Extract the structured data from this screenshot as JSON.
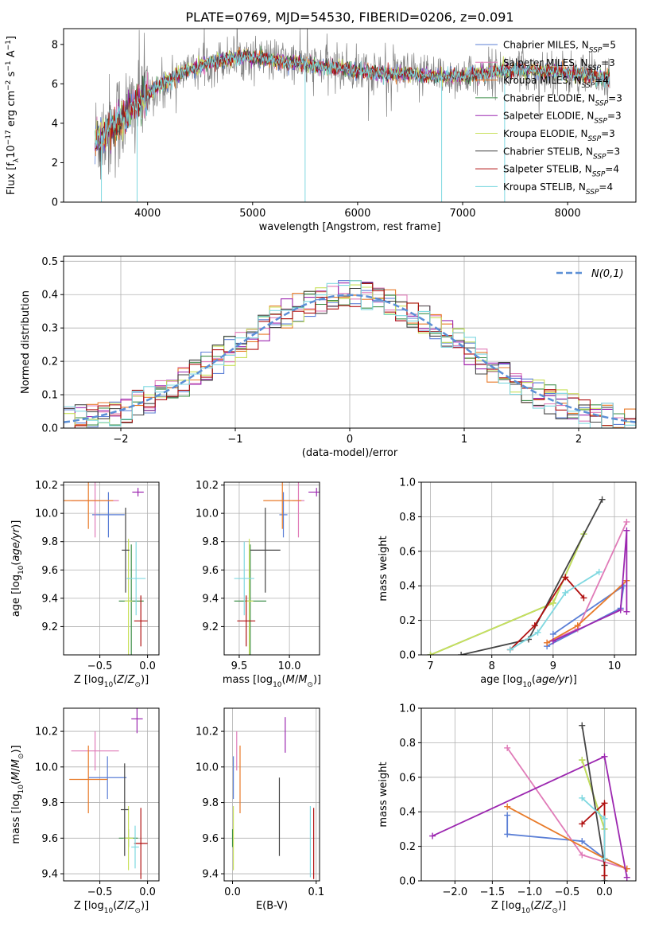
{
  "figure_title": "PLATE=0769, MJD=54530, FIBERID=0206, z=0.091",
  "colors": {
    "chab_miles": "#5b7fd6",
    "salp_miles": "#e07bb8",
    "krou_miles": "#e87a28",
    "chab_elodie": "#3f8f4a",
    "salp_elodie": "#9c27b0",
    "krou_elodie": "#c8e05a",
    "chab_stelib": "#444444",
    "salp_stelib": "#b01010",
    "krou_stelib": "#7fd8e0",
    "data": "#808080"
  },
  "chart_data": [
    {
      "id": "spectrum",
      "type": "line",
      "xlabel": "wavelength [Angstrom, rest frame]",
      "ylabel": "Flux [f_λ 10^-17 erg cm^-2 s^-1 A^-1]",
      "xlim": [
        3200,
        8650
      ],
      "ylim": [
        0,
        8.8
      ],
      "xticks": [
        4000,
        5000,
        6000,
        7000,
        8000
      ],
      "yticks": [
        0,
        2,
        4,
        6,
        8
      ],
      "legend_position": "top-right",
      "legend": [
        {
          "base": "Chabrier MILES, N",
          "n": "5",
          "color_key": "chab_miles"
        },
        {
          "base": "Salpeter MILES, N",
          "n": "3",
          "color_key": "salp_miles"
        },
        {
          "base": "Kroupa MILES, N",
          "n": "4",
          "color_key": "krou_miles"
        },
        {
          "base": "Chabrier ELODIE, N",
          "n": "3",
          "color_key": "chab_elodie"
        },
        {
          "base": "Salpeter ELODIE, N",
          "n": "3",
          "color_key": "salp_elodie"
        },
        {
          "base": "Kroupa ELODIE, N",
          "n": "3",
          "color_key": "krou_elodie"
        },
        {
          "base": "Chabrier STELIB, N",
          "n": "3",
          "color_key": "chab_stelib"
        },
        {
          "base": "Salpeter STELIB, N",
          "n": "4",
          "color_key": "salp_stelib"
        },
        {
          "base": "Kroupa STELIB, N",
          "n": "4",
          "color_key": "krou_stelib"
        }
      ],
      "continuum": {
        "x": [
          3500,
          3700,
          3900,
          4000,
          4300,
          4600,
          4900,
          5200,
          5500,
          5800,
          6100,
          6400,
          6700,
          7000,
          7300,
          7600,
          7900,
          8200,
          8400
        ],
        "y": [
          3.1,
          4.0,
          5.0,
          5.5,
          6.5,
          7.1,
          7.4,
          7.2,
          7.0,
          6.8,
          6.6,
          6.5,
          6.4,
          6.4,
          6.6,
          6.7,
          6.6,
          6.4,
          6.3
        ]
      },
      "model_x_range": [
        3500,
        8400
      ],
      "data_x_range": [
        3500,
        8400
      ]
    },
    {
      "id": "residual_hist",
      "type": "bar",
      "xlabel": "(data-model)/error",
      "ylabel": "Normed distribution",
      "xlim": [
        -2.5,
        2.5
      ],
      "ylim": [
        0,
        0.515
      ],
      "xticks": [
        -2,
        -1,
        0,
        1,
        2
      ],
      "yticks": [
        0,
        0.1,
        0.2,
        0.3,
        0.4,
        0.5
      ],
      "legend_label": "N(0,1)",
      "legend_position": "top-right",
      "bin_width": 0.1,
      "grid": true
    },
    {
      "id": "age_vs_Z",
      "type": "scatter",
      "xlabel": "Z [log10(Z/Z⊙)]",
      "ylabel": "age  [log10(age/yr)]",
      "xlim": [
        -0.88,
        0.12
      ],
      "ylim": [
        9.0,
        10.22
      ],
      "xticks": [
        -0.5,
        0.0
      ],
      "yticks": [
        9.2,
        9.4,
        9.6,
        9.8,
        10.0,
        10.2
      ],
      "points": [
        {
          "c": "chab_miles",
          "x": -0.41,
          "y": 9.99,
          "ex": 0.17,
          "ey": 0.16
        },
        {
          "c": "salp_miles",
          "x": -0.55,
          "y": 10.09,
          "ex": 0.25,
          "ey": 0.26
        },
        {
          "c": "krou_miles",
          "x": -0.62,
          "y": 10.09,
          "ex": 0.26,
          "ey": 0.2
        },
        {
          "c": "chab_elodie",
          "x": -0.17,
          "y": 9.38,
          "ex": 0.13,
          "ey": 0.4
        },
        {
          "c": "salp_elodie",
          "x": -0.1,
          "y": 10.15,
          "ex": 0.06,
          "ey": 0.03
        },
        {
          "c": "krou_elodie",
          "x": -0.2,
          "y": 9.38,
          "ex": 0.04,
          "ey": 0.44
        },
        {
          "c": "chab_stelib",
          "x": -0.23,
          "y": 9.74,
          "ex": 0.04,
          "ey": 0.3
        },
        {
          "c": "salp_stelib",
          "x": -0.07,
          "y": 9.24,
          "ex": 0.07,
          "ey": 0.18
        },
        {
          "c": "krou_stelib",
          "x": -0.12,
          "y": 9.54,
          "ex": 0.1,
          "ey": 0.26
        }
      ]
    },
    {
      "id": "age_vs_mass",
      "type": "scatter",
      "xlabel": "mass [log10(M/M⊙)]",
      "ylabel": "",
      "xlim": [
        9.35,
        10.3
      ],
      "ylim": [
        9.0,
        10.22
      ],
      "xticks": [
        9.5,
        10.0
      ],
      "yticks": [
        9.2,
        9.4,
        9.6,
        9.8,
        10.0,
        10.2
      ],
      "points": [
        {
          "c": "chab_miles",
          "x": 9.94,
          "y": 9.99,
          "ex": 0.04,
          "ey": 0.16
        },
        {
          "c": "salp_miles",
          "x": 10.09,
          "y": 10.09,
          "ex": 0.06,
          "ey": 0.26
        },
        {
          "c": "krou_miles",
          "x": 9.93,
          "y": 10.09,
          "ex": 0.19,
          "ey": 0.2
        },
        {
          "c": "chab_elodie",
          "x": 9.61,
          "y": 9.38,
          "ex": 0.16,
          "ey": 0.4
        },
        {
          "c": "salp_elodie",
          "x": 10.27,
          "y": 10.15,
          "ex": 0.08,
          "ey": 0.03
        },
        {
          "c": "krou_elodie",
          "x": 9.6,
          "y": 9.38,
          "ex": 0.04,
          "ey": 0.44
        },
        {
          "c": "chab_stelib",
          "x": 9.76,
          "y": 9.74,
          "ex": 0.15,
          "ey": 0.3
        },
        {
          "c": "salp_stelib",
          "x": 9.57,
          "y": 9.24,
          "ex": 0.09,
          "ey": 0.18
        },
        {
          "c": "krou_stelib",
          "x": 9.55,
          "y": 9.54,
          "ex": 0.1,
          "ey": 0.26
        }
      ]
    },
    {
      "id": "weight_vs_age",
      "type": "line",
      "xlabel": "age  [log10(age/yr)]",
      "ylabel": "mass weight",
      "xlim": [
        6.85,
        10.35
      ],
      "ylim": [
        0,
        1.0
      ],
      "xticks": [
        7,
        8,
        9,
        10
      ],
      "yticks": [
        0.0,
        0.2,
        0.4,
        0.6,
        0.8,
        1.0
      ],
      "series": [
        {
          "c": "chab_miles",
          "x": [
            8.9,
            10.1,
            10.15,
            9.0
          ],
          "y": [
            0.05,
            0.27,
            0.4,
            0.12
          ]
        },
        {
          "c": "salp_miles",
          "x": [
            8.9,
            9.4,
            10.2
          ],
          "y": [
            0.07,
            0.15,
            0.77
          ]
        },
        {
          "c": "krou_miles",
          "x": [
            8.9,
            9.4,
            10.2
          ],
          "y": [
            0.07,
            0.17,
            0.43
          ]
        },
        {
          "c": "chab_elodie",
          "x": [
            7.0,
            9.0,
            9.5
          ],
          "y": [
            0.0,
            0.3,
            0.7
          ]
        },
        {
          "c": "salp_elodie",
          "x": [
            9.0,
            10.1,
            10.2,
            10.2
          ],
          "y": [
            0.08,
            0.26,
            0.72,
            0.25
          ]
        },
        {
          "c": "krou_elodie",
          "x": [
            7.0,
            9.0,
            9.5
          ],
          "y": [
            0.0,
            0.3,
            0.7
          ]
        },
        {
          "c": "chab_stelib",
          "x": [
            7.5,
            8.6,
            9.8
          ],
          "y": [
            0.0,
            0.09,
            0.9
          ]
        },
        {
          "c": "salp_stelib",
          "x": [
            8.3,
            8.7,
            9.2,
            9.5
          ],
          "y": [
            0.03,
            0.17,
            0.45,
            0.33
          ]
        },
        {
          "c": "krou_stelib",
          "x": [
            8.3,
            8.75,
            9.2,
            9.75
          ],
          "y": [
            0.03,
            0.13,
            0.36,
            0.48
          ]
        }
      ]
    },
    {
      "id": "mass_vs_Z",
      "type": "scatter",
      "xlabel": "Z [log10(Z/Z⊙)]",
      "ylabel": "mass [log10(M/M⊙)]",
      "xlim": [
        -0.88,
        0.12
      ],
      "ylim": [
        9.36,
        10.33
      ],
      "xticks": [
        -0.5,
        0.0
      ],
      "yticks": [
        9.4,
        9.6,
        9.8,
        10.0,
        10.2
      ],
      "points": [
        {
          "c": "chab_miles",
          "x": -0.42,
          "y": 9.94,
          "ex": 0.2,
          "ey": 0.12
        },
        {
          "c": "salp_miles",
          "x": -0.55,
          "y": 10.09,
          "ex": 0.25,
          "ey": 0.11
        },
        {
          "c": "krou_miles",
          "x": -0.62,
          "y": 9.93,
          "ex": 0.2,
          "ey": 0.19
        },
        {
          "c": "chab_elodie",
          "x": -0.2,
          "y": 9.6,
          "ex": 0.1,
          "ey": 0.05
        },
        {
          "c": "salp_elodie",
          "x": -0.11,
          "y": 10.27,
          "ex": 0.06,
          "ey": 0.08
        },
        {
          "c": "krou_elodie",
          "x": -0.2,
          "y": 9.6,
          "ex": 0.05,
          "ey": 0.18
        },
        {
          "c": "chab_stelib",
          "x": -0.24,
          "y": 9.76,
          "ex": 0.04,
          "ey": 0.26
        },
        {
          "c": "salp_stelib",
          "x": -0.07,
          "y": 9.57,
          "ex": 0.07,
          "ey": 0.2
        },
        {
          "c": "krou_stelib",
          "x": -0.13,
          "y": 9.55,
          "ex": 0.04,
          "ey": 0.12
        }
      ]
    },
    {
      "id": "mass_vs_ebv",
      "type": "scatter",
      "xlabel": "E(B-V)",
      "ylabel": "",
      "xlim": [
        -0.01,
        0.104
      ],
      "ylim": [
        9.36,
        10.33
      ],
      "xticks": [
        0.0,
        0.1
      ],
      "yticks": [
        9.4,
        9.6,
        9.8,
        10.0,
        10.2
      ],
      "points": [
        {
          "c": "chab_miles",
          "x": 0.001,
          "y": 9.94,
          "ex": 0,
          "ey": 0.12
        },
        {
          "c": "salp_miles",
          "x": 0.005,
          "y": 10.09,
          "ex": 0,
          "ey": 0.11
        },
        {
          "c": "krou_miles",
          "x": 0.009,
          "y": 9.93,
          "ex": 0,
          "ey": 0.19
        },
        {
          "c": "chab_elodie",
          "x": 0.0,
          "y": 9.6,
          "ex": 0,
          "ey": 0.05
        },
        {
          "c": "salp_elodie",
          "x": 0.063,
          "y": 10.18,
          "ex": 0,
          "ey": 0.1
        },
        {
          "c": "krou_elodie",
          "x": 0.001,
          "y": 9.6,
          "ex": 0,
          "ey": 0.18
        },
        {
          "c": "chab_stelib",
          "x": 0.056,
          "y": 9.72,
          "ex": 0,
          "ey": 0.22
        },
        {
          "c": "salp_stelib",
          "x": 0.097,
          "y": 9.57,
          "ex": 0,
          "ey": 0.2
        },
        {
          "c": "krou_stelib",
          "x": 0.093,
          "y": 9.58,
          "ex": 0,
          "ey": 0.2
        }
      ]
    },
    {
      "id": "weight_vs_Z",
      "type": "line",
      "xlabel": "Z [log10(Z/Z⊙)]",
      "ylabel": "mass weight",
      "xlim": [
        -2.45,
        0.42
      ],
      "ylim": [
        0,
        1.0
      ],
      "xticks": [
        -2.0,
        -1.5,
        -1.0,
        -0.5,
        0.0
      ],
      "yticks": [
        0.0,
        0.2,
        0.4,
        0.6,
        0.8,
        1.0
      ],
      "series": [
        {
          "c": "chab_miles",
          "x": [
            -1.3,
            -1.3,
            -0.3,
            0.0,
            0.3
          ],
          "y": [
            0.38,
            0.27,
            0.23,
            0.13,
            0.07
          ]
        },
        {
          "c": "salp_miles",
          "x": [
            -1.3,
            -0.3,
            0.3
          ],
          "y": [
            0.77,
            0.15,
            0.07
          ]
        },
        {
          "c": "krou_miles",
          "x": [
            -1.3,
            0.0,
            0.3
          ],
          "y": [
            0.43,
            0.13,
            0.07
          ]
        },
        {
          "c": "chab_elodie",
          "x": [
            -0.3,
            0.0
          ],
          "y": [
            0.7,
            0.3
          ]
        },
        {
          "c": "salp_elodie",
          "x": [
            -2.3,
            0.0,
            0.3
          ],
          "y": [
            0.26,
            0.72,
            0.02
          ]
        },
        {
          "c": "krou_elodie",
          "x": [
            -0.3,
            0.0
          ],
          "y": [
            0.7,
            0.3
          ]
        },
        {
          "c": "chab_stelib",
          "x": [
            -0.3,
            0.0,
            0.0
          ],
          "y": [
            0.9,
            0.09,
            0.0
          ]
        },
        {
          "c": "salp_stelib",
          "x": [
            -0.3,
            0.0,
            0.0
          ],
          "y": [
            0.33,
            0.45,
            0.03
          ]
        },
        {
          "c": "krou_stelib",
          "x": [
            -0.3,
            0.0,
            0.0
          ],
          "y": [
            0.48,
            0.36,
            0.13
          ]
        }
      ]
    }
  ]
}
